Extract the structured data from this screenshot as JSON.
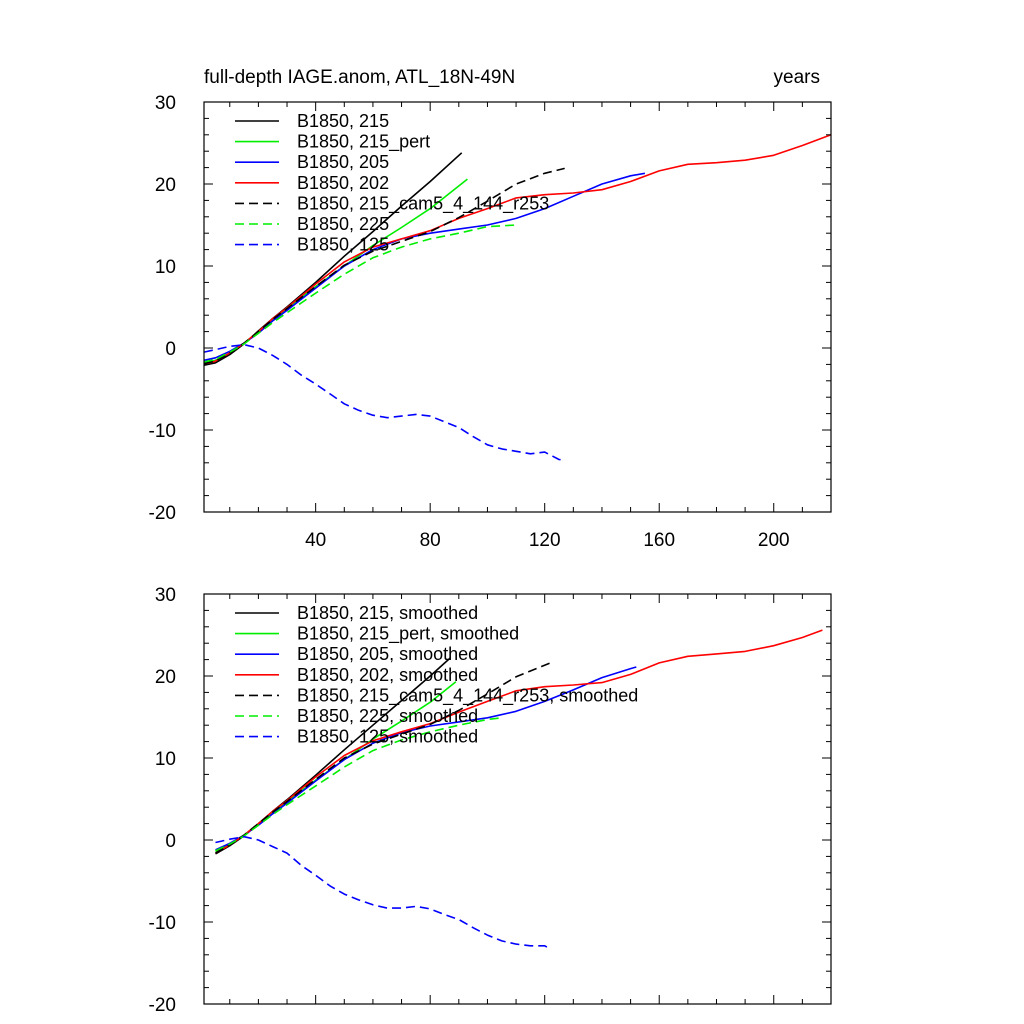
{
  "chart_data": [
    {
      "type": "line",
      "title_left": "full-depth IAGE.anom, ATL_18N-49N",
      "title_right": "years",
      "xlim": [
        1,
        220
      ],
      "ylim": [
        -20,
        30
      ],
      "xticks": [
        40,
        80,
        120,
        160,
        200
      ],
      "yticks": [
        -20,
        -10,
        0,
        10,
        20,
        30
      ],
      "show_x_tick_labels": true,
      "legend_position": "top-left",
      "series": [
        {
          "name": "B1850, 215",
          "color": "#000000",
          "dash": "solid",
          "x": [
            1,
            5,
            10,
            15,
            20,
            25,
            30,
            40,
            50,
            60,
            70,
            80,
            91
          ],
          "y": [
            -2.1,
            -1.8,
            -0.8,
            0.5,
            2.1,
            3.6,
            5.0,
            8.0,
            11.2,
            14.2,
            17.3,
            20.3,
            23.8
          ]
        },
        {
          "name": "B1850, 215_pert",
          "color": "#00ee00",
          "dash": "solid",
          "x": [
            1,
            5,
            10,
            15,
            20,
            25,
            30,
            40,
            50,
            60,
            70,
            80,
            93
          ],
          "y": [
            -1.8,
            -1.5,
            -0.6,
            0.6,
            2.0,
            3.5,
            4.8,
            7.5,
            10.0,
            12.5,
            14.7,
            17.0,
            20.6
          ]
        },
        {
          "name": "B1850, 205",
          "color": "#0000ff",
          "dash": "solid",
          "x": [
            1,
            5,
            10,
            15,
            20,
            25,
            30,
            40,
            50,
            60,
            70,
            80,
            90,
            100,
            110,
            120,
            130,
            140,
            150,
            155
          ],
          "y": [
            -1.5,
            -1.2,
            -0.4,
            0.6,
            1.8,
            3.3,
            4.6,
            7.3,
            10.0,
            12.0,
            13.3,
            14.0,
            14.5,
            15.0,
            15.8,
            17.0,
            18.5,
            20.0,
            21.0,
            21.3
          ]
        },
        {
          "name": "B1850, 202",
          "color": "#ff0000",
          "dash": "solid",
          "x": [
            1,
            5,
            10,
            15,
            20,
            25,
            30,
            40,
            50,
            60,
            70,
            80,
            90,
            100,
            110,
            120,
            130,
            140,
            150,
            160,
            170,
            180,
            190,
            200,
            210,
            220
          ],
          "y": [
            -2.0,
            -1.6,
            -0.6,
            0.6,
            2.0,
            3.6,
            4.9,
            7.8,
            10.5,
            12.3,
            13.3,
            14.3,
            15.8,
            17.0,
            18.3,
            18.7,
            18.9,
            19.3,
            20.3,
            21.6,
            22.4,
            22.6,
            22.9,
            23.5,
            24.7,
            26.0
          ]
        },
        {
          "name": "B1850, 215_cam5_4_144_r253",
          "color": "#000000",
          "dash": "dashed",
          "x": [
            1,
            5,
            10,
            15,
            20,
            25,
            30,
            40,
            50,
            60,
            70,
            80,
            90,
            100,
            110,
            120,
            127
          ],
          "y": [
            -1.9,
            -1.6,
            -0.6,
            0.6,
            2.0,
            3.5,
            4.8,
            7.5,
            10.1,
            11.8,
            13.0,
            14.2,
            15.9,
            17.9,
            20.0,
            21.3,
            21.9
          ]
        },
        {
          "name": "B1850, 225",
          "color": "#00ee00",
          "dash": "dashed",
          "x": [
            1,
            5,
            10,
            15,
            20,
            25,
            30,
            40,
            50,
            60,
            70,
            80,
            90,
            100,
            110
          ],
          "y": [
            -1.7,
            -1.4,
            -0.5,
            0.5,
            1.8,
            3.1,
            4.3,
            6.7,
            9.0,
            11.0,
            12.3,
            13.3,
            14.0,
            14.8,
            15.0
          ]
        },
        {
          "name": "B1850, 125",
          "color": "#0000ff",
          "dash": "dashed",
          "x": [
            1,
            5,
            10,
            15,
            20,
            25,
            30,
            35,
            40,
            45,
            50,
            55,
            60,
            65,
            70,
            75,
            80,
            85,
            90,
            95,
            100,
            105,
            110,
            115,
            120,
            125,
            127
          ],
          "y": [
            -0.5,
            -0.2,
            0.2,
            0.4,
            0.0,
            -0.9,
            -2.0,
            -3.3,
            -4.4,
            -5.6,
            -6.8,
            -7.6,
            -8.2,
            -8.5,
            -8.3,
            -8.1,
            -8.3,
            -9.0,
            -9.7,
            -10.8,
            -11.8,
            -12.3,
            -12.6,
            -12.9,
            -12.7,
            -13.6,
            -13.7
          ]
        }
      ]
    },
    {
      "type": "line",
      "title_left": "",
      "title_right": "",
      "xlim": [
        1,
        220
      ],
      "ylim": [
        -20,
        30
      ],
      "xticks": [
        40,
        80,
        120,
        160,
        200
      ],
      "yticks": [
        -20,
        -10,
        0,
        10,
        20,
        30
      ],
      "show_x_tick_labels": false,
      "legend_position": "top-left",
      "series": [
        {
          "name": "B1850, 215, smoothed",
          "color": "#000000",
          "dash": "solid",
          "x": [
            5,
            10,
            15,
            20,
            25,
            30,
            40,
            50,
            60,
            70,
            80,
            87
          ],
          "y": [
            -1.7,
            -0.7,
            0.5,
            2.0,
            3.5,
            4.9,
            7.9,
            11.0,
            14.0,
            17.0,
            20.0,
            22.2
          ]
        },
        {
          "name": "B1850, 215_pert, smoothed",
          "color": "#00ee00",
          "dash": "solid",
          "x": [
            5,
            10,
            15,
            20,
            25,
            30,
            40,
            50,
            60,
            70,
            80,
            89
          ],
          "y": [
            -1.4,
            -0.5,
            0.6,
            2.0,
            3.4,
            4.7,
            7.3,
            9.8,
            12.3,
            14.5,
            16.8,
            19.3
          ]
        },
        {
          "name": "B1850, 205, smoothed",
          "color": "#0000ff",
          "dash": "solid",
          "x": [
            5,
            10,
            15,
            20,
            25,
            30,
            40,
            50,
            60,
            70,
            80,
            90,
            100,
            110,
            120,
            130,
            140,
            150,
            152
          ],
          "y": [
            -1.2,
            -0.4,
            0.6,
            1.8,
            3.2,
            4.5,
            7.2,
            9.8,
            11.8,
            13.1,
            13.9,
            14.4,
            14.9,
            15.7,
            16.9,
            18.3,
            19.8,
            20.9,
            21.1
          ]
        },
        {
          "name": "B1850, 202, smoothed",
          "color": "#ff0000",
          "dash": "solid",
          "x": [
            5,
            10,
            15,
            20,
            25,
            30,
            40,
            50,
            60,
            70,
            80,
            90,
            100,
            110,
            120,
            130,
            140,
            150,
            160,
            170,
            180,
            190,
            200,
            210,
            217
          ],
          "y": [
            -1.6,
            -0.6,
            0.6,
            2.0,
            3.5,
            4.8,
            7.7,
            10.3,
            12.1,
            13.2,
            14.2,
            15.6,
            16.9,
            18.2,
            18.7,
            18.9,
            19.2,
            20.2,
            21.6,
            22.4,
            22.7,
            23.0,
            23.7,
            24.7,
            25.6
          ]
        },
        {
          "name": "B1850, 215_cam5_4_144_r253, smoothed",
          "color": "#000000",
          "dash": "dashed",
          "x": [
            5,
            10,
            15,
            20,
            25,
            30,
            40,
            50,
            60,
            70,
            80,
            90,
            100,
            110,
            122
          ],
          "y": [
            -1.6,
            -0.6,
            0.6,
            2.0,
            3.4,
            4.7,
            7.4,
            10.0,
            11.7,
            12.9,
            14.1,
            15.8,
            17.8,
            19.9,
            21.6
          ]
        },
        {
          "name": "B1850, 225, smoothed",
          "color": "#00ee00",
          "dash": "dashed",
          "x": [
            5,
            10,
            15,
            20,
            25,
            30,
            40,
            50,
            60,
            70,
            80,
            90,
            100,
            105
          ],
          "y": [
            -1.3,
            -0.5,
            0.5,
            1.8,
            3.1,
            4.3,
            6.6,
            8.9,
            10.9,
            12.2,
            13.2,
            14.0,
            14.7,
            14.9
          ]
        },
        {
          "name": "B1850, 125, smoothed",
          "color": "#0000ff",
          "dash": "dashed",
          "x": [
            5,
            10,
            15,
            20,
            25,
            30,
            35,
            40,
            45,
            50,
            55,
            60,
            65,
            70,
            75,
            80,
            85,
            90,
            95,
            100,
            105,
            110,
            115,
            120,
            122
          ],
          "y": [
            -0.3,
            0.1,
            0.4,
            0.0,
            -0.8,
            -1.6,
            -3.1,
            -4.3,
            -5.6,
            -6.6,
            -7.3,
            -7.9,
            -8.3,
            -8.3,
            -8.1,
            -8.4,
            -9.1,
            -9.7,
            -10.7,
            -11.6,
            -12.3,
            -12.7,
            -12.9,
            -12.9,
            -13.3
          ]
        }
      ]
    }
  ]
}
